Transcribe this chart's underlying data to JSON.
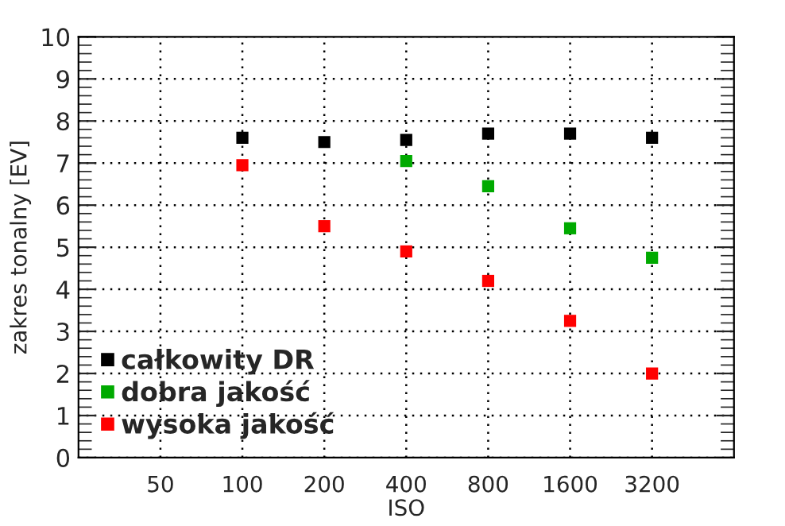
{
  "chart_data": {
    "type": "scatter",
    "xlabel": "ISO",
    "ylabel": "zakres tonalny [EV]",
    "x": [
      100,
      200,
      400,
      800,
      1600,
      3200
    ],
    "series": [
      {
        "name": "całkowity DR",
        "color": "#000000",
        "values": [
          7.6,
          7.5,
          7.55,
          7.7,
          7.7,
          7.6
        ]
      },
      {
        "name": "dobra jakość",
        "color": "#00aa00",
        "values": [
          null,
          null,
          7.05,
          6.45,
          5.45,
          4.75
        ]
      },
      {
        "name": "wysoka jakość",
        "color": "#ff0000",
        "values": [
          6.95,
          5.5,
          4.9,
          4.2,
          3.25,
          2.0
        ]
      }
    ],
    "log": "x",
    "xlim": [
      25,
      6400
    ],
    "xticks": [
      50,
      100,
      200,
      400,
      800,
      1600,
      3200
    ],
    "ylim": [
      0,
      10
    ],
    "yticks": [
      0,
      1,
      2,
      3,
      4,
      5,
      6,
      7,
      8,
      9,
      10
    ],
    "grid": true,
    "legend": "bottom left",
    "marker": "square"
  }
}
